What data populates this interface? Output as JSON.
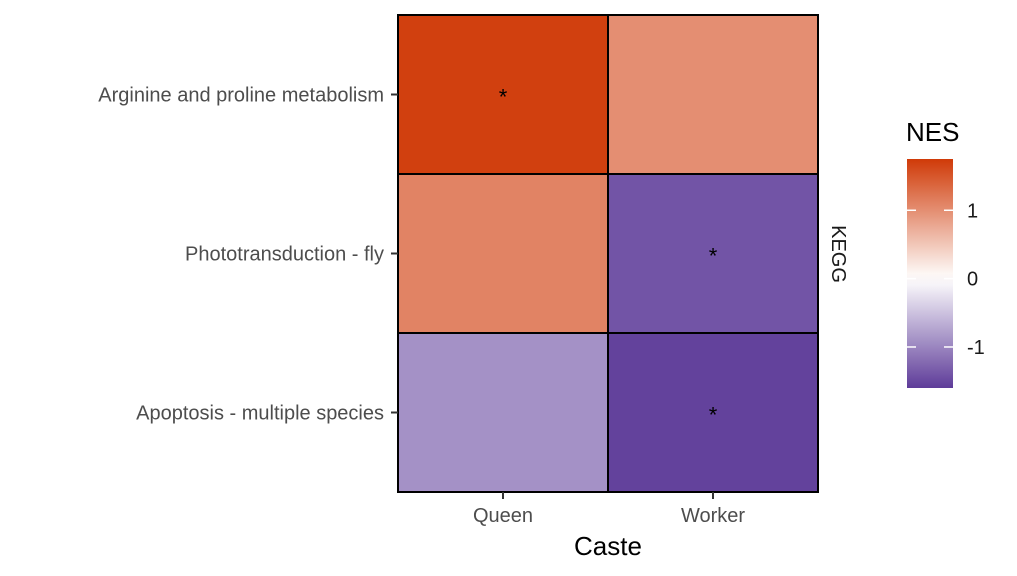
{
  "chart_data": {
    "type": "heatmap",
    "xlabel": "Caste",
    "x_categories": [
      "Queen",
      "Worker"
    ],
    "y_categories": [
      "Arginine and proline metabolism",
      "Phototransduction - fly",
      "Apoptosis - multiple species"
    ],
    "facet_label": "KEGG",
    "legend": {
      "title": "NES",
      "ticks": [
        1,
        0,
        -1
      ],
      "range": [
        -1.6,
        1.75
      ],
      "placement": "right"
    },
    "values": [
      [
        1.7,
        1.0
      ],
      [
        1.1,
        -1.4
      ],
      [
        -0.9,
        -1.55
      ]
    ],
    "significance": [
      [
        "*",
        ""
      ],
      [
        "",
        "*"
      ],
      [
        "",
        "*"
      ]
    ],
    "colors": {
      "low": "#5e3c99",
      "mid": "#ffffff",
      "high": "#d03a08"
    },
    "grid": false
  }
}
